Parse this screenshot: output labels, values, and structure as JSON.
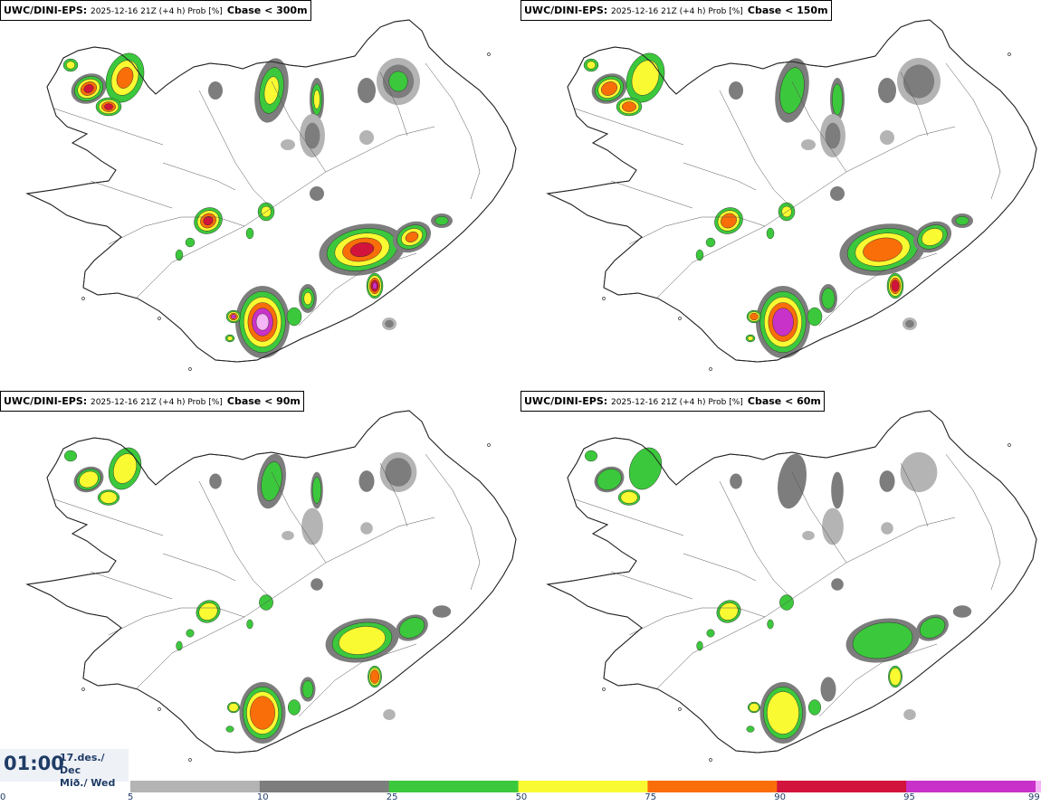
{
  "panels": [
    {
      "model": "UWC/DINI-EPS",
      "run": "2025-12-16 21Z (+4 h) Prob [%]",
      "variable": "Cbase < 300m",
      "intensity": 1.0
    },
    {
      "model": "UWC/DINI-EPS",
      "run": "2025-12-16 21Z (+4 h) Prob [%]",
      "variable": "Cbase < 150m",
      "intensity": 0.8
    },
    {
      "model": "UWC/DINI-EPS",
      "run": "2025-12-16 21Z (+4 h) Prob [%]",
      "variable": "Cbase < 90m",
      "intensity": 0.6
    },
    {
      "model": "UWC/DINI-EPS",
      "run": "2025-12-16 21Z (+4 h) Prob [%]",
      "variable": "Cbase < 60m",
      "intensity": 0.45
    }
  ],
  "time": {
    "clock": "01:00",
    "date_line1": "17.des./ Dec",
    "date_line2": "Mið./ Wed"
  },
  "legend": {
    "ticks": [
      "0",
      "5",
      "10",
      "25",
      "50",
      "75",
      "90",
      "95",
      "99"
    ],
    "bins": [
      {
        "from": 5,
        "to": 10,
        "color": "#b4b4b4"
      },
      {
        "from": 10,
        "to": 25,
        "color": "#7d7d7d"
      },
      {
        "from": 25,
        "to": 50,
        "color": "#3cc83c"
      },
      {
        "from": 50,
        "to": 75,
        "color": "#fafa32"
      },
      {
        "from": 75,
        "to": 90,
        "color": "#fa6e0a"
      },
      {
        "from": 90,
        "to": 95,
        "color": "#d2143c"
      },
      {
        "from": 95,
        "to": 99,
        "color": "#c832c8"
      },
      {
        "from": 99,
        "to": 100,
        "color": "#f5b4f5"
      }
    ]
  }
}
